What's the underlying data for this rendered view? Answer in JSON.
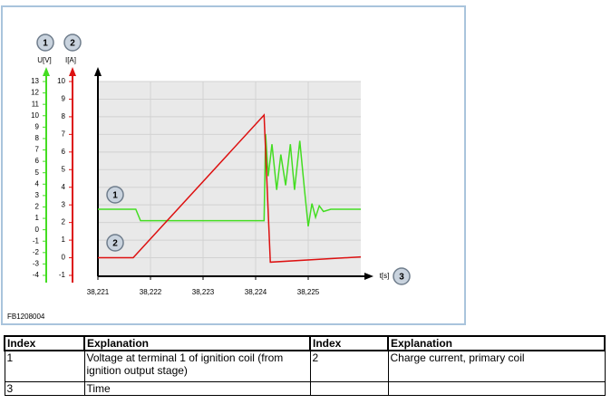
{
  "chart_data": {
    "type": "line",
    "ylabel": "U[V]",
    "y2label": "I[A]",
    "xlabel": "t[s]",
    "callouts": [
      "1",
      "2",
      "3"
    ],
    "xlim": [
      38.221,
      38.226
    ],
    "xticks": [
      {
        "value": 38.221,
        "label": "38,221"
      },
      {
        "value": 38.222,
        "label": "38,222"
      },
      {
        "value": 38.223,
        "label": "38,223"
      },
      {
        "value": 38.224,
        "label": "38,224"
      },
      {
        "value": 38.225,
        "label": "38,225"
      }
    ],
    "ylim": [
      -4,
      13
    ],
    "yticks": [
      -4,
      -3,
      -2,
      -1,
      0,
      1,
      2,
      3,
      4,
      5,
      6,
      7,
      8,
      9,
      10,
      11,
      12,
      13
    ],
    "y2lim": [
      -1,
      10
    ],
    "y2ticks": [
      -1,
      0,
      1,
      2,
      3,
      4,
      5,
      6,
      7,
      8,
      9,
      10
    ],
    "grid": true,
    "series": [
      {
        "color": "#44dd22",
        "axis": "y",
        "x": [
          38.221,
          38.22172,
          38.22181,
          38.22416,
          38.22419,
          38.22424,
          38.22431,
          38.2244,
          38.22448,
          38.22457,
          38.22466,
          38.22474,
          38.22484,
          38.22493,
          38.225,
          38.22507,
          38.22514,
          38.22521,
          38.22529,
          38.22543,
          38.226
        ],
        "values": [
          1.8,
          1.8,
          0.8,
          0.8,
          8.4,
          4.7,
          7.5,
          3.5,
          6.6,
          3.9,
          7.5,
          3.5,
          7.8,
          3.5,
          0.3,
          2.3,
          1.1,
          2.1,
          1.6,
          1.8,
          1.8
        ]
      },
      {
        "color": "#dd1111",
        "axis": "y2",
        "x": [
          38.221,
          38.22167,
          38.22416,
          38.22428,
          38.226
        ],
        "values": [
          0,
          0,
          8.1,
          -0.25,
          0.05
        ]
      }
    ]
  },
  "figure_id": "FB1208004",
  "table": {
    "header": [
      "Index",
      "Explanation",
      "Index",
      "Explanation"
    ],
    "rows": [
      [
        "1",
        "Voltage at terminal 1 of ignition coil (from ignition output stage)",
        "2",
        "Charge current, primary coil"
      ],
      [
        "3",
        "Time",
        "",
        ""
      ]
    ]
  }
}
